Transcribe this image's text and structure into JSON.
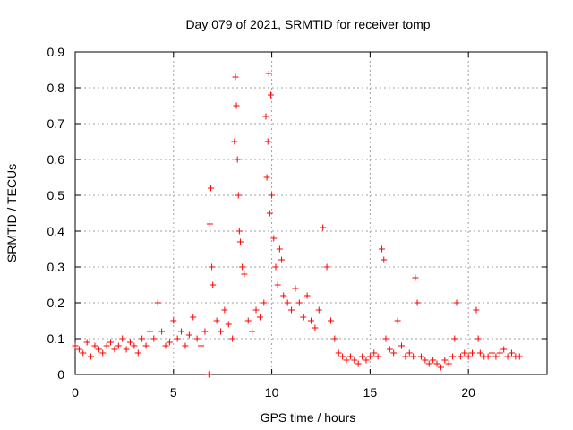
{
  "chart_data": {
    "type": "scatter",
    "title": "Day 079 of 2021, SRMTID for receiver tomp",
    "xlabel": "GPS time / hours",
    "ylabel": "SRMTID / TECUs",
    "xlim": [
      0,
      24
    ],
    "ylim": [
      0,
      0.9
    ],
    "xticks": [
      0,
      5,
      10,
      15,
      20
    ],
    "xtick_labels": [
      "0",
      "5",
      "10",
      "15",
      "20"
    ],
    "yticks": [
      0,
      0.1,
      0.2,
      0.3,
      0.4,
      0.5,
      0.6,
      0.7,
      0.8,
      0.9
    ],
    "ytick_labels": [
      "0",
      "0.1",
      "0.2",
      "0.3",
      "0.4",
      "0.5",
      "0.6",
      "0.7",
      "0.8",
      "0.9"
    ],
    "grid": true,
    "marker": "plus",
    "color": "#ff0000",
    "series": [
      {
        "name": "SRMTID",
        "x": [
          0.0,
          0.2,
          0.4,
          0.6,
          0.8,
          1.0,
          1.2,
          1.4,
          1.6,
          1.8,
          2.0,
          2.2,
          2.4,
          2.6,
          2.8,
          3.0,
          3.2,
          3.4,
          3.6,
          3.8,
          4.0,
          4.2,
          4.4,
          4.6,
          4.8,
          5.0,
          5.2,
          5.4,
          5.6,
          5.8,
          6.0,
          6.2,
          6.4,
          6.6,
          6.8,
          6.85,
          6.9,
          6.95,
          7.0,
          7.2,
          7.4,
          7.6,
          7.8,
          8.0,
          8.1,
          8.15,
          8.2,
          8.25,
          8.3,
          8.35,
          8.4,
          8.5,
          8.6,
          8.8,
          9.0,
          9.2,
          9.4,
          9.6,
          9.7,
          9.75,
          9.8,
          9.85,
          9.9,
          9.95,
          10.0,
          10.1,
          10.2,
          10.3,
          10.4,
          10.5,
          10.6,
          10.8,
          11.0,
          11.2,
          11.4,
          11.6,
          11.8,
          12.0,
          12.2,
          12.4,
          12.6,
          12.8,
          13.0,
          13.2,
          13.4,
          13.6,
          13.8,
          14.0,
          14.2,
          14.4,
          14.6,
          14.8,
          15.0,
          15.2,
          15.4,
          15.6,
          15.7,
          15.8,
          16.0,
          16.2,
          16.4,
          16.6,
          16.8,
          17.0,
          17.2,
          17.3,
          17.4,
          17.6,
          17.8,
          18.0,
          18.2,
          18.4,
          18.6,
          18.8,
          19.0,
          19.2,
          19.3,
          19.4,
          19.6,
          19.8,
          20.0,
          20.2,
          20.4,
          20.5,
          20.6,
          20.8,
          21.0,
          21.2,
          21.4,
          21.6,
          21.8,
          22.0,
          22.2,
          22.4,
          22.6
        ],
        "y": [
          0.08,
          0.07,
          0.06,
          0.09,
          0.05,
          0.08,
          0.07,
          0.06,
          0.08,
          0.09,
          0.07,
          0.08,
          0.1,
          0.07,
          0.09,
          0.08,
          0.06,
          0.1,
          0.08,
          0.12,
          0.1,
          0.2,
          0.12,
          0.08,
          0.09,
          0.15,
          0.1,
          0.12,
          0.08,
          0.11,
          0.16,
          0.1,
          0.08,
          0.12,
          0.0,
          0.42,
          0.52,
          0.3,
          0.25,
          0.15,
          0.12,
          0.18,
          0.14,
          0.1,
          0.65,
          0.83,
          0.75,
          0.6,
          0.5,
          0.4,
          0.37,
          0.3,
          0.28,
          0.15,
          0.12,
          0.18,
          0.16,
          0.2,
          0.72,
          0.55,
          0.65,
          0.84,
          0.45,
          0.78,
          0.5,
          0.38,
          0.3,
          0.25,
          0.35,
          0.32,
          0.22,
          0.2,
          0.18,
          0.24,
          0.2,
          0.16,
          0.22,
          0.15,
          0.13,
          0.18,
          0.41,
          0.3,
          0.15,
          0.1,
          0.06,
          0.05,
          0.04,
          0.05,
          0.04,
          0.03,
          0.05,
          0.04,
          0.05,
          0.06,
          0.05,
          0.35,
          0.32,
          0.1,
          0.07,
          0.06,
          0.15,
          0.08,
          0.05,
          0.06,
          0.05,
          0.27,
          0.2,
          0.05,
          0.04,
          0.03,
          0.04,
          0.03,
          0.02,
          0.04,
          0.03,
          0.05,
          0.1,
          0.2,
          0.05,
          0.06,
          0.05,
          0.06,
          0.18,
          0.1,
          0.06,
          0.05,
          0.05,
          0.06,
          0.05,
          0.06,
          0.07,
          0.05,
          0.06,
          0.05,
          0.05
        ]
      }
    ]
  }
}
